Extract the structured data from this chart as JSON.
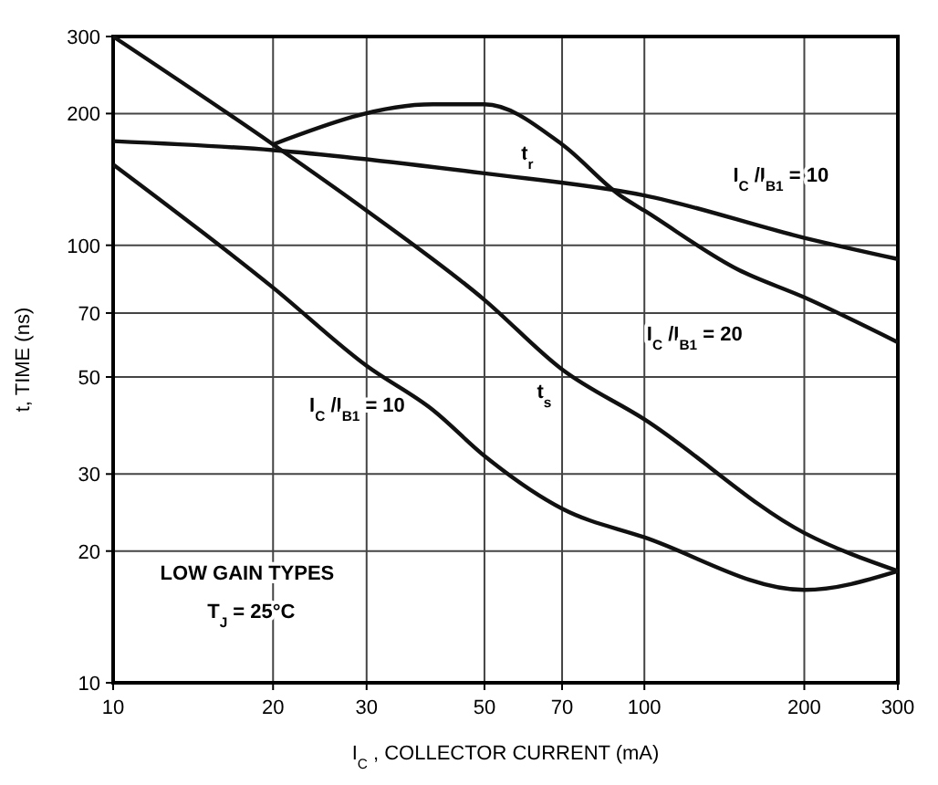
{
  "chart_data": {
    "type": "line",
    "xlabel": "I$_{C}$, COLLECTOR CURRENT (mA)",
    "ylabel": "t, TIME (ns)",
    "log": "xy",
    "grid": true,
    "marker": "none",
    "line_style": "solid",
    "xlim": [
      10,
      300
    ],
    "ylim": [
      10,
      300
    ],
    "xticks": [
      10,
      20,
      30,
      50,
      70,
      100,
      200,
      300
    ],
    "yticks": [
      10,
      20,
      30,
      50,
      70,
      100,
      200,
      300
    ],
    "series": [
      {
        "color": "#111111",
        "x": [
          10,
          20,
          30,
          50,
          70,
          100,
          200,
          300
        ],
        "values": [
          300,
          170,
          120,
          75,
          52,
          40,
          22,
          18
        ]
      },
      {
        "color": "#111111",
        "x": [
          10,
          20,
          30,
          40,
          50,
          70,
          100,
          200,
          300
        ],
        "values": [
          153,
          80,
          53,
          42,
          33,
          25,
          21.5,
          16.3,
          18
        ]
      },
      {
        "color": "#111111",
        "x": [
          10,
          20,
          50,
          100,
          200,
          300
        ],
        "values": [
          173,
          165,
          146,
          130,
          104,
          93
        ]
      },
      {
        "color": "#111111",
        "x": [
          20,
          40,
          50,
          70,
          90,
          100,
          150,
          200,
          300
        ],
        "values": [
          170,
          210,
          210,
          170,
          130,
          120,
          88,
          76,
          60
        ]
      }
    ],
    "annotations": [
      "t$_{r}$",
      "I$_{C}$/I$_{B1}$ = 10",
      "I$_{C}$/I$_{B1}$ = 20",
      "I$_{C}$/I$_{B1}$ = 10",
      "t$_{s}$",
      "LOW GAIN TYPES",
      "T$_{J}$ = 25°C"
    ]
  }
}
